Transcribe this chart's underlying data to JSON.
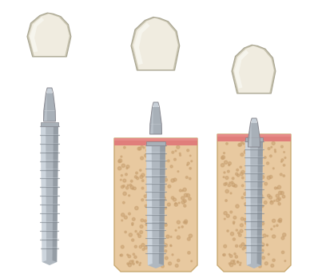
{
  "bg_color": "#ffffff",
  "bone_color": "#e8c9a0",
  "bone_dots_color": "#c8a070",
  "gum_color": "#e07878",
  "gum_light": "#f0a0a0",
  "implant_color": "#b0b8c0",
  "implant_light": "#d8e0e8",
  "implant_dark": "#808890",
  "crown_color": "#f0ece0",
  "crown_light": "#fafaf5",
  "crown_dark": "#c8c4b0",
  "abutment_color": "#a8b0b8",
  "abutment_light": "#c8d0d8",
  "abutment_dark": "#787880"
}
